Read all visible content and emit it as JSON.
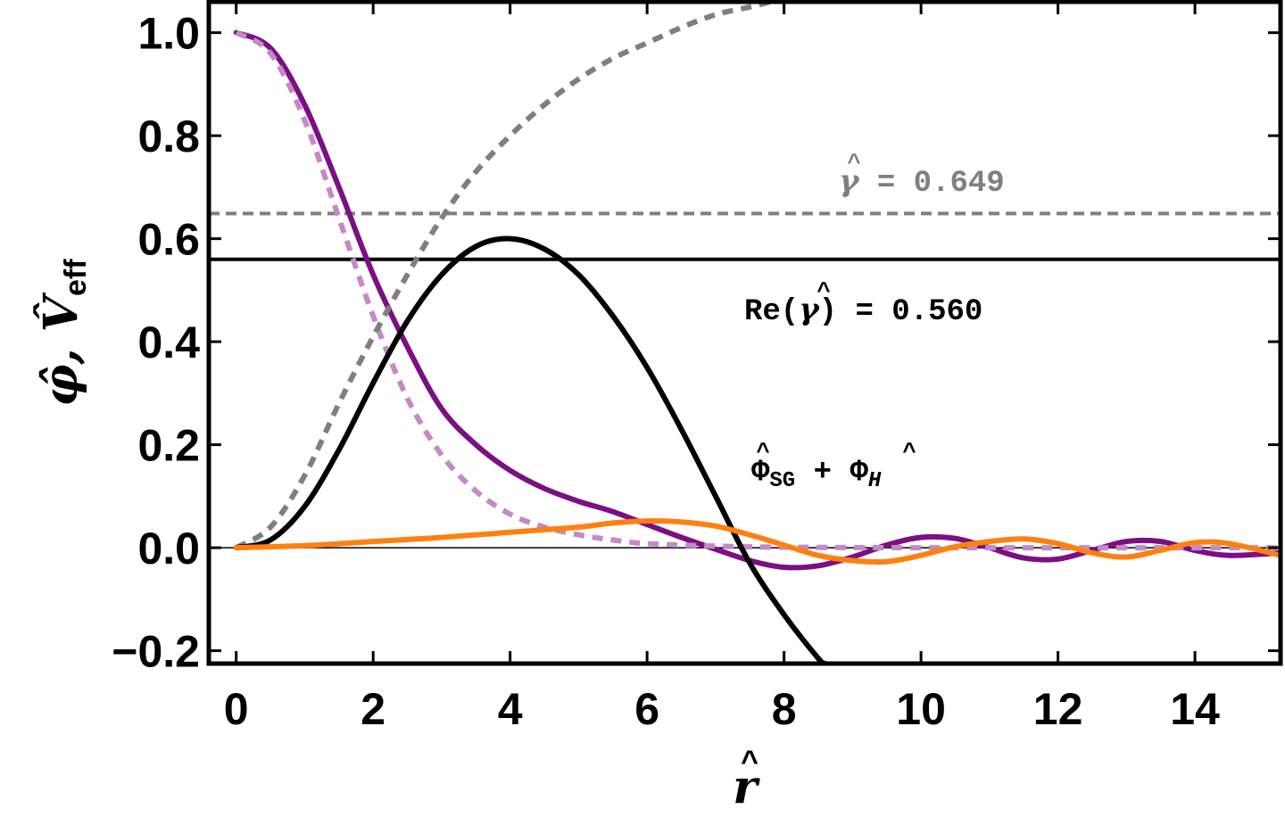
{
  "chart_data": {
    "type": "line",
    "xlabel": "r̂",
    "ylabel": "φ̂, V̂eff",
    "ylabel_main": "φ̂, V̂",
    "ylabel_sub": "eff",
    "xlim": [
      -0.4,
      15.25
    ],
    "ylim": [
      -0.225,
      1.06
    ],
    "x_ticks": [
      0,
      2,
      4,
      6,
      8,
      10,
      12,
      14
    ],
    "x_tick_labels": [
      "0",
      "2",
      "4",
      "6",
      "8",
      "10",
      "12",
      "14"
    ],
    "y_ticks": [
      -0.2,
      0.0,
      0.2,
      0.4,
      0.6,
      0.8,
      1.0
    ],
    "y_tick_labels": [
      "−0.2",
      "0.0",
      "0.2",
      "0.4",
      "0.6",
      "0.8",
      "1.0"
    ],
    "grid": false,
    "legend": "none",
    "series": [
      {
        "color": "#7b0f83",
        "style": "solid",
        "x": [
          0,
          0.5,
          1.0,
          1.5,
          2.0,
          2.5,
          3.0,
          3.5,
          4.0,
          4.5,
          5.0,
          5.5,
          6.0,
          6.5,
          7.0,
          7.5,
          8.0,
          8.5,
          9.0,
          9.5,
          10.0,
          10.5,
          11.0,
          11.5,
          12.0,
          12.5,
          13.0,
          13.5,
          14.0,
          14.5,
          15.25
        ],
        "y": [
          1.0,
          0.97,
          0.86,
          0.7,
          0.53,
          0.39,
          0.27,
          0.2,
          0.15,
          0.115,
          0.09,
          0.07,
          0.045,
          0.02,
          -0.003,
          -0.025,
          -0.038,
          -0.035,
          -0.018,
          0.005,
          0.02,
          0.018,
          0.0,
          -0.02,
          -0.022,
          -0.005,
          0.012,
          0.012,
          -0.005,
          -0.015,
          -0.01
        ]
      },
      {
        "color": "#c38ac6",
        "style": "dashed",
        "x": [
          0,
          0.5,
          1.0,
          1.5,
          2.0,
          2.5,
          3.0,
          3.5,
          4.0,
          4.5,
          5.0,
          5.5,
          6.0,
          7.0,
          8.0,
          10.0,
          12.0,
          15.25
        ],
        "y": [
          1.0,
          0.96,
          0.83,
          0.64,
          0.45,
          0.29,
          0.18,
          0.11,
          0.065,
          0.04,
          0.025,
          0.015,
          0.008,
          0.003,
          0.001,
          0.0,
          0.0,
          0.0
        ]
      },
      {
        "color": "#7f7f7f",
        "style": "dashed",
        "x": [
          0,
          0.5,
          1.0,
          1.5,
          2.0,
          2.5,
          3.0,
          3.5,
          4.0,
          4.5,
          5.0,
          5.5,
          6.0,
          6.5,
          7.0,
          7.5,
          7.8
        ],
        "y": [
          0.0,
          0.04,
          0.14,
          0.28,
          0.41,
          0.53,
          0.64,
          0.73,
          0.8,
          0.86,
          0.91,
          0.95,
          0.98,
          1.01,
          1.035,
          1.05,
          1.06
        ]
      },
      {
        "color": "#000000",
        "style": "solid",
        "x": [
          0,
          0.5,
          1.0,
          1.5,
          2.0,
          2.5,
          3.0,
          3.5,
          4.0,
          4.5,
          5.0,
          5.5,
          6.0,
          6.5,
          7.0,
          7.5,
          8.0,
          8.5,
          8.6
        ],
        "y": [
          0.0,
          0.015,
          0.08,
          0.19,
          0.32,
          0.44,
          0.53,
          0.585,
          0.6,
          0.58,
          0.53,
          0.45,
          0.35,
          0.23,
          0.1,
          -0.03,
          -0.13,
          -0.215,
          -0.225
        ]
      },
      {
        "color": "#ff8010",
        "style": "solid",
        "x": [
          0,
          1.0,
          2.0,
          3.0,
          4.0,
          5.0,
          5.5,
          6.0,
          6.5,
          7.0,
          7.5,
          8.0,
          8.5,
          9.0,
          9.5,
          10.0,
          10.5,
          11.0,
          11.5,
          12.0,
          12.5,
          13.0,
          13.5,
          14.0,
          14.5,
          15.25
        ],
        "y": [
          0.0,
          0.004,
          0.012,
          0.02,
          0.03,
          0.04,
          0.048,
          0.052,
          0.05,
          0.042,
          0.025,
          0.005,
          -0.015,
          -0.025,
          -0.027,
          -0.015,
          0.002,
          0.012,
          0.017,
          0.008,
          -0.01,
          -0.018,
          -0.005,
          0.01,
          0.008,
          -0.015
        ]
      }
    ],
    "reference_lines": [
      {
        "y": 0.649,
        "color": "#7f7f7f",
        "style": "dashed"
      },
      {
        "y": 0.56,
        "color": "#000000",
        "style": "solid"
      },
      {
        "y": 0.0,
        "color": "#000000",
        "style": "thin"
      }
    ],
    "annotations": {
      "gamma": {
        "label": "γ̂ = 0.649",
        "symbol": "γ",
        "text": " = 0.649",
        "color": "#7f7f7f"
      },
      "re_gamma": {
        "label": "Re(γ̂) = 0.560",
        "prefix": "Re(",
        "symbol": "γ",
        "text": ") = 0.560",
        "color": "#000000"
      },
      "phi_sum": {
        "label": "Φ̂SG + Φ̂H",
        "symbol1": "Φ",
        "sub1": "SG",
        "mid": " + ",
        "symbol2": "Φ",
        "sub2": "H",
        "color": "#000000"
      }
    }
  }
}
